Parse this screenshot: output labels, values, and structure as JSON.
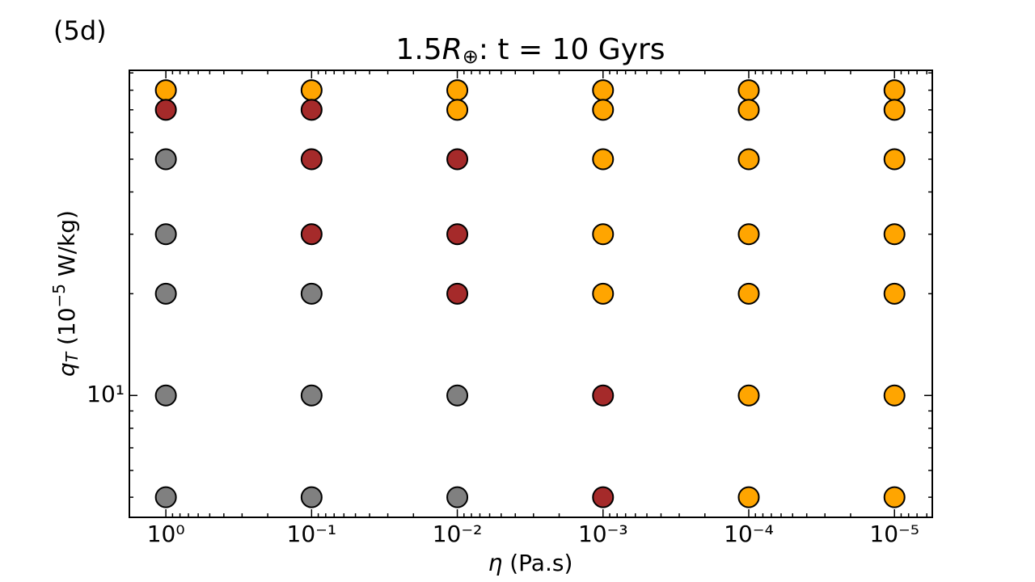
{
  "chart_data": {
    "type": "scatter",
    "panel_label": "(5d)",
    "title": [
      "1.5",
      "R",
      "⊕",
      ": t = 10 Gyrs"
    ],
    "x_label": [
      "η",
      " (Pa.s)"
    ],
    "y_label": [
      "q",
      "T",
      " (10",
      "−5",
      " W/kg)"
    ],
    "x": [
      1,
      1,
      1,
      1,
      1,
      1,
      1,
      0.1,
      0.1,
      0.1,
      0.1,
      0.1,
      0.1,
      0.1,
      0.01,
      0.01,
      0.01,
      0.01,
      0.01,
      0.01,
      0.01,
      0.001,
      0.001,
      0.001,
      0.001,
      0.001,
      0.001,
      0.001,
      0.0001,
      0.0001,
      0.0001,
      0.0001,
      0.0001,
      0.0001,
      0.0001,
      1e-05,
      1e-05,
      1e-05,
      1e-05,
      1e-05,
      1e-05,
      1e-05
    ],
    "y": [
      80,
      70,
      50,
      30,
      20,
      10,
      5,
      80,
      70,
      50,
      30,
      20,
      10,
      5,
      80,
      70,
      50,
      30,
      20,
      10,
      5,
      80,
      70,
      50,
      30,
      20,
      10,
      5,
      80,
      70,
      50,
      30,
      20,
      10,
      5,
      80,
      70,
      50,
      30,
      20,
      10,
      5
    ],
    "colors": [
      "#ffa500",
      "#a52a2a",
      "#808080",
      "#808080",
      "#808080",
      "#808080",
      "#808080",
      "#ffa500",
      "#a52a2a",
      "#a52a2a",
      "#a52a2a",
      "#808080",
      "#808080",
      "#808080",
      "#ffa500",
      "#ffa500",
      "#a52a2a",
      "#a52a2a",
      "#a52a2a",
      "#808080",
      "#808080",
      "#ffa500",
      "#ffa500",
      "#ffa500",
      "#ffa500",
      "#ffa500",
      "#a52a2a",
      "#a52a2a",
      "#ffa500",
      "#ffa500",
      "#ffa500",
      "#ffa500",
      "#ffa500",
      "#ffa500",
      "#ffa500",
      "#ffa500",
      "#ffa500",
      "#ffa500",
      "#ffa500",
      "#ffa500",
      "#ffa500",
      "#ffa500"
    ],
    "xscale": "log",
    "yscale": "log",
    "xlim": [
      1.78,
      5.5e-06
    ],
    "ylim": [
      4.36,
      91.6
    ],
    "xticks": [
      {
        "value": 1,
        "label": "10⁰"
      },
      {
        "value": 0.1,
        "label": "10⁻¹"
      },
      {
        "value": 0.01,
        "label": "10⁻²"
      },
      {
        "value": 0.001,
        "label": "10⁻³"
      },
      {
        "value": 0.0001,
        "label": "10⁻⁴"
      },
      {
        "value": 1e-05,
        "label": "10⁻⁵"
      }
    ],
    "yticks": [
      {
        "value": 10,
        "label": "10¹"
      }
    ],
    "xminorticks": [
      0.9,
      0.8,
      0.7,
      0.6,
      0.5,
      0.4,
      0.3,
      0.2,
      0.09,
      0.08,
      0.07,
      0.06,
      0.05,
      0.04,
      0.03,
      0.02,
      0.009,
      0.008,
      0.007,
      0.006,
      0.005,
      0.004,
      0.003,
      0.002,
      0.0009,
      0.0008,
      0.0007,
      0.0006,
      0.0005,
      0.0004,
      0.0003,
      0.0002,
      9e-05,
      8e-05,
      7e-05,
      6e-05,
      5e-05,
      4e-05,
      3e-05,
      2e-05,
      9e-06,
      8e-06,
      7e-06,
      6e-06
    ],
    "yminorticks": [
      5,
      6,
      7,
      8,
      9,
      20,
      30,
      40,
      50,
      60,
      70,
      80,
      90
    ],
    "marker_edge_color": "#000000"
  }
}
